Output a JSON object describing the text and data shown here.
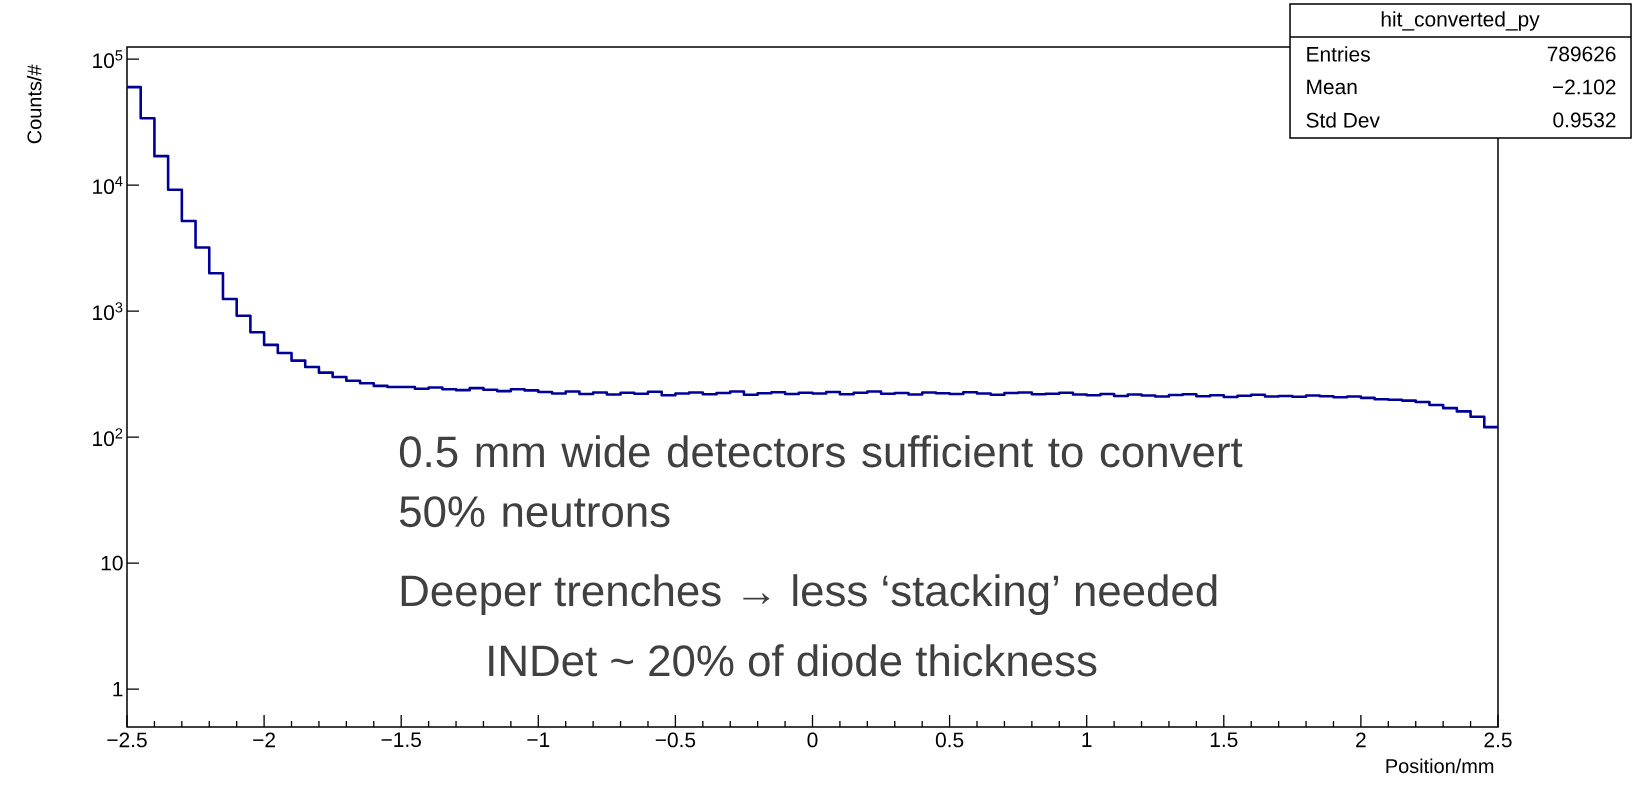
{
  "chart_data": {
    "type": "histogram",
    "title": "hit_converted_py",
    "xlabel": "Position/mm",
    "ylabel": "Counts/#",
    "color": "#000099",
    "log": "y",
    "bins": [
      -2.5,
      -2.45,
      -2.4,
      -2.35,
      -2.3,
      -2.25,
      -2.2,
      -2.15,
      -2.1,
      -2.05,
      -2.0,
      -1.95,
      -1.9,
      -1.85,
      -1.8,
      -1.75,
      -1.7,
      -1.65,
      -1.6,
      -1.55,
      -1.5,
      -1.45,
      -1.4,
      -1.35,
      -1.3,
      -1.25,
      -1.2,
      -1.15,
      -1.1,
      -1.05,
      -1.0,
      -0.95,
      -0.9,
      -0.85,
      -0.8,
      -0.75,
      -0.7,
      -0.65,
      -0.6,
      -0.55,
      -0.5,
      -0.45,
      -0.4,
      -0.35,
      -0.3,
      -0.25,
      -0.2,
      -0.15,
      -0.1,
      -0.05,
      0.0,
      0.05,
      0.1,
      0.15,
      0.2,
      0.25,
      0.3,
      0.35,
      0.4,
      0.45,
      0.5,
      0.55,
      0.6,
      0.65,
      0.7,
      0.75,
      0.8,
      0.85,
      0.9,
      0.95,
      1.0,
      1.05,
      1.1,
      1.15,
      1.2,
      1.25,
      1.3,
      1.35,
      1.4,
      1.45,
      1.5,
      1.55,
      1.6,
      1.65,
      1.7,
      1.75,
      1.8,
      1.85,
      1.9,
      1.95,
      2.0,
      2.05,
      2.1,
      2.15,
      2.2,
      2.25,
      2.3,
      2.35,
      2.4,
      2.45,
      2.5
    ],
    "values": [
      60000,
      34000,
      17000,
      9200,
      5200,
      3200,
      2000,
      1250,
      920,
      680,
      540,
      465,
      405,
      360,
      325,
      300,
      280,
      268,
      255,
      250,
      250,
      242,
      248,
      240,
      236,
      245,
      238,
      232,
      240,
      235,
      228,
      222,
      230,
      220,
      226,
      218,
      225,
      221,
      229,
      215,
      222,
      226,
      219,
      224,
      230,
      217,
      223,
      227,
      220,
      225,
      222,
      228,
      219,
      225,
      230,
      221,
      224,
      218,
      226,
      223,
      220,
      227,
      222,
      217,
      224,
      226,
      219,
      221,
      225,
      218,
      215,
      220,
      212,
      218,
      214,
      210,
      216,
      219,
      211,
      215,
      208,
      213,
      217,
      210,
      212,
      209,
      214,
      211,
      207,
      210,
      205,
      200,
      198,
      195,
      190,
      180,
      170,
      160,
      145,
      120
    ],
    "xlim": [
      -2.5,
      2.5
    ],
    "ylim": [
      0.5,
      125000
    ],
    "xticks": [
      {
        "value": -2.5,
        "label": "−2.5"
      },
      {
        "value": -2,
        "label": "−2"
      },
      {
        "value": -1.5,
        "label": "−1.5"
      },
      {
        "value": -1,
        "label": "−1"
      },
      {
        "value": -0.5,
        "label": "−0.5"
      },
      0,
      0.5,
      1,
      1.5,
      2,
      2.5
    ],
    "yticks": [
      1,
      10,
      {
        "value": 100,
        "label": "10$^{2}$"
      },
      {
        "value": 1000,
        "label": "10$^{3}$"
      },
      {
        "value": 10000,
        "label": "10$^{4}$"
      },
      {
        "value": 100000,
        "label": "10$^{5}$"
      }
    ],
    "annotations": [
      "0.5 mm wide detectors sufficient to convert 50% neutrons",
      "Deeper trenches → less ‘stacking’ needed",
      "INDet ~ 20% of diode thickness",
      "Entries",
      "789626",
      "Mean",
      "−2.102",
      "Std Dev",
      "0.9532"
    ]
  }
}
